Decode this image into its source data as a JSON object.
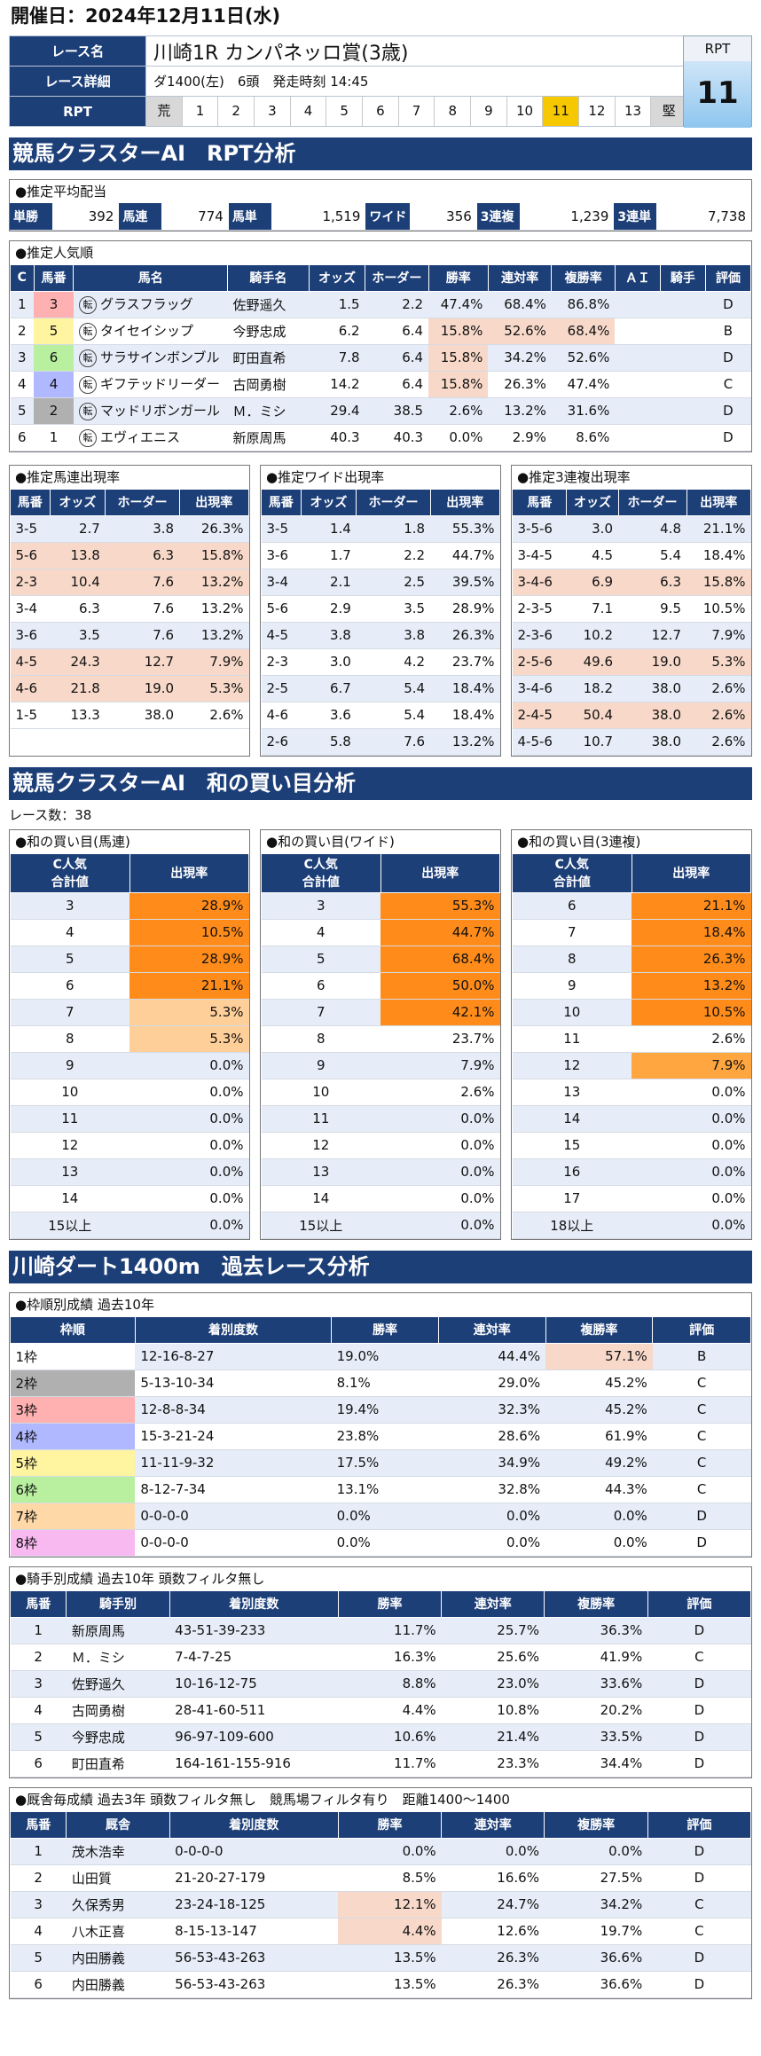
{
  "date_line": "開催日：2024年12月11日(水)",
  "header": {
    "race_name_label": "レース名",
    "race_name": "川崎1R カンパネッロ賞(3歳)",
    "race_detail_label": "レース詳細",
    "race_detail": "ダ1400(左)　6頭　発走時刻 14:45",
    "rpt_label": "RPT",
    "gates": [
      "荒",
      "1",
      "2",
      "3",
      "4",
      "5",
      "6",
      "7",
      "8",
      "9",
      "10",
      "11",
      "12",
      "13",
      "堅"
    ],
    "rpt_value": "11",
    "rpt_box_label": "RPT"
  },
  "section1": "競馬クラスターAI　RPT分析",
  "avg": {
    "title": "●推定平均配当",
    "items": [
      {
        "k": "単勝",
        "v": "392"
      },
      {
        "k": "馬連",
        "v": "774"
      },
      {
        "k": "馬単",
        "v": "1,519"
      },
      {
        "k": "ワイド",
        "v": "356"
      },
      {
        "k": "3連複",
        "v": "1,239"
      },
      {
        "k": "3連単",
        "v": "7,738"
      }
    ]
  },
  "popular": {
    "title": "●推定人気順",
    "headers": [
      "C",
      "馬番",
      "馬名",
      "騎手名",
      "オッズ",
      "ホーダー",
      "勝率",
      "連対率",
      "複勝率",
      "ＡＩ",
      "騎手",
      "評価"
    ],
    "rows": [
      [
        "1",
        "3",
        "グラスフラッグ",
        "佐野遥久",
        "1.5",
        "2.2",
        "47.4%",
        "68.4%",
        "86.8%",
        "",
        "",
        "D"
      ],
      [
        "2",
        "5",
        "タイセイシップ",
        "今野忠成",
        "6.2",
        "6.4",
        "15.8%",
        "52.6%",
        "68.4%",
        "",
        "",
        "B"
      ],
      [
        "3",
        "6",
        "サラサインボンブル",
        "町田直希",
        "7.8",
        "6.4",
        "15.8%",
        "34.2%",
        "52.6%",
        "",
        "",
        "D"
      ],
      [
        "4",
        "4",
        "ギフテッドリーダー",
        "古岡勇樹",
        "14.2",
        "6.4",
        "15.8%",
        "26.3%",
        "47.4%",
        "",
        "",
        "C"
      ],
      [
        "5",
        "2",
        "マッドリボンガール",
        "Ｍ．ミシ",
        "29.4",
        "38.5",
        "2.6%",
        "13.2%",
        "31.6%",
        "",
        "",
        "D"
      ],
      [
        "6",
        "1",
        "エヴィエニス",
        "新原周馬",
        "40.3",
        "40.3",
        "0.0%",
        "2.9%",
        "8.6%",
        "",
        "",
        "D"
      ]
    ],
    "ten": "転"
  },
  "umaren": {
    "title": "●推定馬連出現率",
    "headers": [
      "馬番",
      "オッズ",
      "ホーダー",
      "出現率"
    ],
    "rows": [
      [
        "3-5",
        "2.7",
        "3.8",
        "26.3%"
      ],
      [
        "5-6",
        "13.8",
        "6.3",
        "15.8%"
      ],
      [
        "2-3",
        "10.4",
        "7.6",
        "13.2%"
      ],
      [
        "3-4",
        "6.3",
        "7.6",
        "13.2%"
      ],
      [
        "3-6",
        "3.5",
        "7.6",
        "13.2%"
      ],
      [
        "4-5",
        "24.3",
        "12.7",
        "7.9%"
      ],
      [
        "4-6",
        "21.8",
        "19.0",
        "5.3%"
      ],
      [
        "1-5",
        "13.3",
        "38.0",
        "2.6%"
      ]
    ]
  },
  "wide": {
    "title": "●推定ワイド出現率",
    "headers": [
      "馬番",
      "オッズ",
      "ホーダー",
      "出現率"
    ],
    "rows": [
      [
        "3-5",
        "1.4",
        "1.8",
        "55.3%"
      ],
      [
        "3-6",
        "1.7",
        "2.2",
        "44.7%"
      ],
      [
        "3-4",
        "2.1",
        "2.5",
        "39.5%"
      ],
      [
        "5-6",
        "2.9",
        "3.5",
        "28.9%"
      ],
      [
        "4-5",
        "3.8",
        "3.8",
        "26.3%"
      ],
      [
        "2-3",
        "3.0",
        "4.2",
        "23.7%"
      ],
      [
        "2-5",
        "6.7",
        "5.4",
        "18.4%"
      ],
      [
        "4-6",
        "3.6",
        "5.4",
        "18.4%"
      ],
      [
        "2-6",
        "5.8",
        "7.6",
        "13.2%"
      ]
    ]
  },
  "trio": {
    "title": "●推定3連複出現率",
    "headers": [
      "馬番",
      "オッズ",
      "ホーダー",
      "出現率"
    ],
    "rows": [
      [
        "3-5-6",
        "3.0",
        "4.8",
        "21.1%"
      ],
      [
        "3-4-5",
        "4.5",
        "5.4",
        "18.4%"
      ],
      [
        "3-4-6",
        "6.9",
        "6.3",
        "15.8%"
      ],
      [
        "2-3-5",
        "7.1",
        "9.5",
        "10.5%"
      ],
      [
        "2-3-6",
        "10.2",
        "12.7",
        "7.9%"
      ],
      [
        "2-5-6",
        "49.6",
        "19.0",
        "5.3%"
      ],
      [
        "3-4-6",
        "18.2",
        "38.0",
        "2.6%"
      ],
      [
        "2-4-5",
        "50.4",
        "38.0",
        "2.6%"
      ],
      [
        "4-5-6",
        "10.7",
        "38.0",
        "2.6%"
      ]
    ]
  },
  "section2": "競馬クラスターAI　和の買い目分析",
  "race_count": "レース数：38",
  "sum_umaren": {
    "title": "●和の買い目(馬連)",
    "h1": "C人気\n合計値",
    "h2": "出現率",
    "rows": [
      [
        "3",
        "28.9%"
      ],
      [
        "4",
        "10.5%"
      ],
      [
        "5",
        "28.9%"
      ],
      [
        "6",
        "21.1%"
      ],
      [
        "7",
        "5.3%"
      ],
      [
        "8",
        "5.3%"
      ],
      [
        "9",
        "0.0%"
      ],
      [
        "10",
        "0.0%"
      ],
      [
        "11",
        "0.0%"
      ],
      [
        "12",
        "0.0%"
      ],
      [
        "13",
        "0.0%"
      ],
      [
        "14",
        "0.0%"
      ],
      [
        "15以上",
        "0.0%"
      ]
    ]
  },
  "sum_wide": {
    "title": "●和の買い目(ワイド)",
    "h1": "C人気\n合計値",
    "h2": "出現率",
    "rows": [
      [
        "3",
        "55.3%"
      ],
      [
        "4",
        "44.7%"
      ],
      [
        "5",
        "68.4%"
      ],
      [
        "6",
        "50.0%"
      ],
      [
        "7",
        "42.1%"
      ],
      [
        "8",
        "23.7%"
      ],
      [
        "9",
        "7.9%"
      ],
      [
        "10",
        "2.6%"
      ],
      [
        "11",
        "0.0%"
      ],
      [
        "12",
        "0.0%"
      ],
      [
        "13",
        "0.0%"
      ],
      [
        "14",
        "0.0%"
      ],
      [
        "15以上",
        "0.0%"
      ]
    ]
  },
  "sum_trio": {
    "title": "●和の買い目(3連複)",
    "h1": "C人気\n合計値",
    "h2": "出現率",
    "rows": [
      [
        "6",
        "21.1%"
      ],
      [
        "7",
        "18.4%"
      ],
      [
        "8",
        "26.3%"
      ],
      [
        "9",
        "13.2%"
      ],
      [
        "10",
        "10.5%"
      ],
      [
        "11",
        "2.6%"
      ],
      [
        "12",
        "7.9%"
      ],
      [
        "13",
        "0.0%"
      ],
      [
        "14",
        "0.0%"
      ],
      [
        "15",
        "0.0%"
      ],
      [
        "16",
        "0.0%"
      ],
      [
        "17",
        "0.0%"
      ],
      [
        "18以上",
        "0.0%"
      ]
    ]
  },
  "section3": "川崎ダート1400m　過去レース分析",
  "waku": {
    "title": "●枠順別成績 過去10年",
    "headers": [
      "枠順",
      "着別度数",
      "勝率",
      "連対率",
      "複勝率",
      "評価"
    ],
    "rows": [
      [
        "1枠",
        "12-16-8-27",
        "19.0%",
        "44.4%",
        "57.1%",
        "B"
      ],
      [
        "2枠",
        "5-13-10-34",
        "8.1%",
        "29.0%",
        "45.2%",
        "C"
      ],
      [
        "3枠",
        "12-8-8-34",
        "19.4%",
        "32.3%",
        "45.2%",
        "C"
      ],
      [
        "4枠",
        "15-3-21-24",
        "23.8%",
        "28.6%",
        "61.9%",
        "C"
      ],
      [
        "5枠",
        "11-11-9-32",
        "17.5%",
        "34.9%",
        "49.2%",
        "C"
      ],
      [
        "6枠",
        "8-12-7-34",
        "13.1%",
        "32.8%",
        "44.3%",
        "C"
      ],
      [
        "7枠",
        "0-0-0-0",
        "0.0%",
        "0.0%",
        "0.0%",
        "D"
      ],
      [
        "8枠",
        "0-0-0-0",
        "0.0%",
        "0.0%",
        "0.0%",
        "D"
      ]
    ],
    "colors": [
      "#ffffff",
      "#b0b0b0",
      "#ffb0b0",
      "#b0b8ff",
      "#fff4a0",
      "#b8f0a0",
      "#ffd8a8",
      "#f8b8f0"
    ]
  },
  "jockey": {
    "title": "●騎手別成績 過去10年 頭数フィルタ無し",
    "headers": [
      "馬番",
      "騎手別",
      "着別度数",
      "勝率",
      "連対率",
      "複勝率",
      "評価"
    ],
    "rows": [
      [
        "1",
        "新原周馬",
        "43-51-39-233",
        "11.7%",
        "25.7%",
        "36.3%",
        "D"
      ],
      [
        "2",
        "Ｍ．ミシ",
        "7-4-7-25",
        "16.3%",
        "25.6%",
        "41.9%",
        "C"
      ],
      [
        "3",
        "佐野遥久",
        "10-16-12-75",
        "8.8%",
        "23.0%",
        "33.6%",
        "D"
      ],
      [
        "4",
        "古岡勇樹",
        "28-41-60-511",
        "4.4%",
        "10.8%",
        "20.2%",
        "D"
      ],
      [
        "5",
        "今野忠成",
        "96-97-109-600",
        "10.6%",
        "21.4%",
        "33.5%",
        "D"
      ],
      [
        "6",
        "町田直希",
        "164-161-155-916",
        "11.7%",
        "23.3%",
        "34.4%",
        "D"
      ]
    ]
  },
  "trainer": {
    "title": "●厩舎毎成績 過去3年 頭数フィルタ無し　競馬場フィルタ有り　距離1400～1400",
    "headers": [
      "馬番",
      "厩舎",
      "着別度数",
      "勝率",
      "連対率",
      "複勝率",
      "評価"
    ],
    "rows": [
      [
        "1",
        "茂木浩幸",
        "0-0-0-0",
        "0.0%",
        "0.0%",
        "0.0%",
        "D"
      ],
      [
        "2",
        "山田質",
        "21-20-27-179",
        "8.5%",
        "16.6%",
        "27.5%",
        "D"
      ],
      [
        "3",
        "久保秀男",
        "23-24-18-125",
        "12.1%",
        "24.7%",
        "34.2%",
        "C"
      ],
      [
        "4",
        "八木正喜",
        "8-15-13-147",
        "4.4%",
        "12.6%",
        "19.7%",
        "C"
      ],
      [
        "5",
        "内田勝義",
        "56-53-43-263",
        "13.5%",
        "26.3%",
        "36.6%",
        "D"
      ],
      [
        "6",
        "内田勝義",
        "56-53-43-263",
        "13.5%",
        "26.3%",
        "36.6%",
        "D"
      ]
    ]
  }
}
